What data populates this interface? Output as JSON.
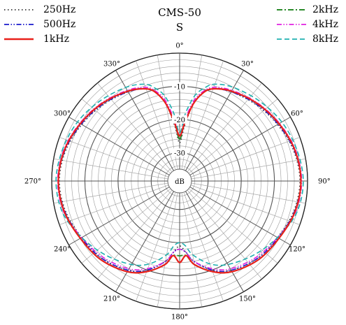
{
  "chart_data": {
    "type": "polar",
    "title": "CMS-50",
    "subtitle": "S",
    "unit_label": "dB",
    "angle_ticks": [
      0,
      30,
      60,
      90,
      120,
      150,
      180,
      210,
      240,
      270,
      300,
      330
    ],
    "angle_tick_labels": [
      "0°",
      "30°",
      "60°",
      "90°",
      "120°",
      "150°",
      "180°",
      "210°",
      "240°",
      "270°",
      "300°",
      "330°"
    ],
    "radial_ticks": [
      -10,
      -20,
      -30
    ],
    "radial_tick_labels": [
      "-10",
      "-20",
      "-30"
    ],
    "r_range": [
      -35,
      0
    ],
    "legend_left": [
      "250Hz",
      "500Hz",
      "1kHz"
    ],
    "legend_right": [
      "2kHz",
      "4kHz",
      "8kHz"
    ],
    "series": [
      {
        "name": "250Hz",
        "color": "#333333",
        "style": "dotted",
        "angles": [
          0,
          5,
          10,
          15,
          20,
          30,
          45,
          60,
          75,
          90,
          105,
          120,
          135,
          150,
          160,
          170,
          175,
          180,
          185,
          190,
          200,
          210,
          225,
          240,
          255,
          270,
          285,
          300,
          315,
          330,
          340,
          345,
          350,
          355
        ],
        "values": [
          -27,
          -22,
          -15,
          -11,
          -9,
          -7.5,
          -6,
          -4.5,
          -3,
          -2.3,
          -3,
          -4.5,
          -5.5,
          -7.5,
          -10,
          -14,
          -17,
          -19,
          -17,
          -14,
          -10,
          -7.5,
          -5.5,
          -4.5,
          -3,
          -2.3,
          -3,
          -4.5,
          -6,
          -7.5,
          -9,
          -11,
          -15,
          -22
        ]
      },
      {
        "name": "500Hz",
        "color": "#1a1acc",
        "style": "dashdotdot",
        "angles": [
          0,
          5,
          10,
          15,
          20,
          30,
          45,
          60,
          75,
          90,
          105,
          120,
          135,
          150,
          160,
          170,
          175,
          180,
          185,
          190,
          200,
          210,
          225,
          240,
          255,
          270,
          285,
          300,
          315,
          330,
          340,
          345,
          350,
          355
        ],
        "values": [
          -26,
          -21,
          -15,
          -11,
          -9,
          -7.5,
          -5.8,
          -4.3,
          -2.8,
          -2,
          -2.8,
          -4.3,
          -5.5,
          -7.5,
          -10,
          -14,
          -17,
          -18,
          -17,
          -14,
          -10,
          -7.5,
          -5.5,
          -4.3,
          -2.8,
          -2,
          -2.8,
          -4.3,
          -5.8,
          -7.5,
          -9,
          -11,
          -15,
          -21
        ]
      },
      {
        "name": "1kHz",
        "color": "#e8201a",
        "style": "solid",
        "angles": [
          0,
          5,
          10,
          15,
          20,
          30,
          45,
          60,
          75,
          90,
          105,
          120,
          135,
          150,
          160,
          170,
          175,
          180,
          185,
          190,
          200,
          210,
          225,
          240,
          255,
          270,
          285,
          300,
          315,
          330,
          340,
          345,
          350,
          355
        ],
        "values": [
          -25,
          -21,
          -15,
          -11,
          -9,
          -7.3,
          -5.5,
          -4,
          -2.6,
          -2,
          -2.6,
          -4,
          -5,
          -7,
          -9.5,
          -13,
          -16,
          -14,
          -16,
          -13,
          -9.5,
          -7,
          -5,
          -4,
          -2.6,
          -2,
          -2.6,
          -4,
          -5.5,
          -7.3,
          -9,
          -11,
          -15,
          -21
        ]
      },
      {
        "name": "2kHz",
        "color": "#2a8a2a",
        "style": "dashdot",
        "angles": [
          0,
          5,
          10,
          15,
          20,
          30,
          45,
          60,
          75,
          90,
          105,
          120,
          135,
          150,
          160,
          170,
          175,
          180,
          185,
          190,
          200,
          210,
          225,
          240,
          255,
          270,
          285,
          300,
          315,
          330,
          340,
          345,
          350,
          355
        ],
        "values": [
          -26,
          -21,
          -15,
          -11,
          -9,
          -7.3,
          -5.5,
          -4,
          -2.6,
          -2,
          -2.6,
          -4,
          -5,
          -7,
          -9.5,
          -13,
          -16,
          -16,
          -16,
          -13,
          -9.5,
          -7,
          -5,
          -4,
          -2.6,
          -2,
          -2.6,
          -4,
          -5.5,
          -7.3,
          -9,
          -11,
          -15,
          -21
        ]
      },
      {
        "name": "4kHz",
        "color": "#e020e0",
        "style": "dashdotdot",
        "angles": [
          0,
          5,
          10,
          15,
          20,
          30,
          45,
          60,
          75,
          90,
          105,
          120,
          135,
          150,
          160,
          170,
          175,
          180,
          185,
          190,
          200,
          210,
          225,
          240,
          255,
          270,
          285,
          300,
          315,
          330,
          340,
          345,
          350,
          355
        ],
        "values": [
          -25,
          -20,
          -14,
          -10.5,
          -8.5,
          -7,
          -5.3,
          -3.8,
          -2.4,
          -1.8,
          -2.4,
          -4.5,
          -6,
          -8,
          -10.5,
          -14,
          -17,
          -18,
          -17,
          -14,
          -10.5,
          -8,
          -6,
          -4.5,
          -2.4,
          -1.8,
          -2.4,
          -3.8,
          -5.3,
          -7,
          -8.5,
          -10.5,
          -14,
          -20
        ]
      },
      {
        "name": "8kHz",
        "color": "#20b0b0",
        "style": "dashed",
        "angles": [
          0,
          5,
          10,
          15,
          20,
          30,
          45,
          60,
          75,
          90,
          105,
          120,
          135,
          150,
          160,
          170,
          175,
          180,
          185,
          190,
          200,
          210,
          225,
          240,
          255,
          270,
          285,
          300,
          315,
          330,
          340,
          345,
          350,
          355
        ],
        "values": [
          -24,
          -18,
          -12.5,
          -9.5,
          -7.5,
          -6,
          -4.5,
          -3,
          -2,
          -1.3,
          -2,
          -4.5,
          -7,
          -9.5,
          -12,
          -16,
          -19,
          -20,
          -19,
          -16,
          -12,
          -9.5,
          -7,
          -4.5,
          -2,
          -1.3,
          -2,
          -3,
          -4.5,
          -6,
          -7.5,
          -9.5,
          -12.5,
          -18
        ]
      }
    ]
  }
}
